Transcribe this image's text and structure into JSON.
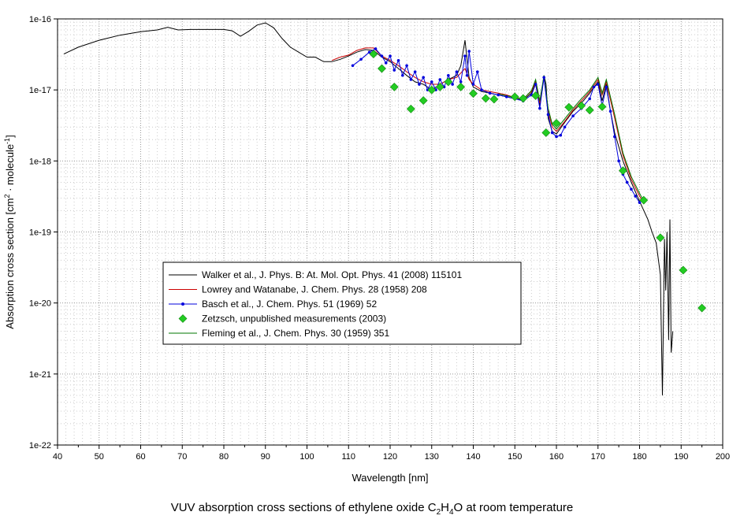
{
  "caption": {
    "prefix": "VUV absorption cross sections of ethylene oxide C",
    "sub1": "2",
    "mid1": "H",
    "sub2": "4",
    "suffix": "O at room temperature"
  },
  "chart_data": {
    "type": "line",
    "title": "",
    "xlabel": "Wavelength [nm]",
    "ylabel_parts": [
      "Absorption cross section [cm",
      "2",
      " · molecule",
      "-1",
      "]"
    ],
    "xlim": [
      40,
      200
    ],
    "ylim": [
      1e-22,
      1e-16
    ],
    "yscale": "log",
    "x_ticks": [
      40,
      50,
      60,
      70,
      80,
      90,
      100,
      110,
      120,
      130,
      140,
      150,
      160,
      170,
      180,
      190,
      200
    ],
    "y_ticks": [
      {
        "value": 1e-22,
        "label": "1e-22"
      },
      {
        "value": 1e-21,
        "label": "1e-21"
      },
      {
        "value": 1e-20,
        "label": "1e-20"
      },
      {
        "value": 1e-19,
        "label": "1e-19"
      },
      {
        "value": 1e-18,
        "label": "1e-18"
      },
      {
        "value": 1e-17,
        "label": "1e-17"
      },
      {
        "value": 1e-16,
        "label": "1e-16"
      }
    ],
    "grid": true,
    "legend_position": "center-left",
    "series": [
      {
        "name": "Walker et al., J. Phys. B: At. Mol. Opt. Phys. 41 (2008) 115101",
        "color": "#000000",
        "style": "line",
        "x": [
          41.5,
          45,
          50,
          55,
          60,
          64,
          66.5,
          69,
          72,
          76,
          80,
          82,
          84,
          86,
          88,
          90,
          92,
          94,
          96,
          98,
          100,
          102,
          104,
          106,
          108,
          110,
          112,
          114,
          116,
          118,
          120,
          122,
          124,
          126,
          128,
          130,
          132,
          134,
          136,
          137,
          138,
          139,
          140,
          142,
          144,
          146,
          148,
          150,
          152,
          154,
          155,
          156,
          157,
          157.5,
          158,
          159,
          160,
          162,
          164,
          166,
          168,
          170,
          171,
          172,
          173,
          174,
          176,
          178,
          180,
          182,
          183,
          184,
          185,
          185.5,
          186,
          186.3,
          186.6,
          187,
          187.3,
          187.6,
          188
        ],
        "y": [
          3.2e-17,
          4e-17,
          5e-17,
          5.9e-17,
          6.6e-17,
          7e-17,
          7.6e-17,
          7e-17,
          7.1e-17,
          7.1e-17,
          7.1e-17,
          6.8e-17,
          5.7e-17,
          6.7e-17,
          8.2e-17,
          8.8e-17,
          7.5e-17,
          5.3e-17,
          4e-17,
          3.4e-17,
          2.9e-17,
          2.9e-17,
          2.5e-17,
          2.5e-17,
          2.7e-17,
          3e-17,
          3.4e-17,
          3.7e-17,
          3.6e-17,
          2.9e-17,
          2.5e-17,
          2e-17,
          1.6e-17,
          1.3e-17,
          1.2e-17,
          1e-17,
          1.2e-17,
          1.4e-17,
          1.6e-17,
          2.2e-17,
          5e-17,
          1.5e-17,
          1.1e-17,
          9.5e-18,
          9e-18,
          8.5e-18,
          8e-18,
          7.5e-18,
          7.2e-18,
          9e-18,
          1.3e-17,
          6e-18,
          1.6e-17,
          1.2e-17,
          4e-18,
          2.6e-18,
          2.4e-18,
          3.5e-18,
          5e-18,
          6.5e-18,
          9e-18,
          1.3e-17,
          7e-18,
          1.2e-17,
          5e-18,
          2.5e-18,
          1e-18,
          5e-19,
          2.7e-19,
          1.5e-19,
          1e-19,
          7e-20,
          2.5e-20,
          5e-22,
          8e-20,
          1.5e-20,
          1e-19,
          3e-21,
          1.5e-19,
          2e-21,
          4e-21
        ]
      },
      {
        "name": "Lowrey and Watanabe, J. Chem. Phys. 28 (1958) 208",
        "color": "#cc0000",
        "style": "line",
        "x": [
          106,
          108,
          110,
          112,
          114,
          116,
          118,
          120,
          122,
          124,
          126,
          128,
          130,
          132,
          134,
          136,
          138,
          139,
          140,
          142,
          144,
          146,
          148,
          150,
          152,
          154,
          155,
          156,
          157,
          158,
          159,
          160,
          162,
          164,
          166,
          168,
          170,
          171,
          172,
          174,
          176,
          178,
          180,
          181
        ],
        "y": [
          2.6e-17,
          2.9e-17,
          3.1e-17,
          3.6e-17,
          3.9e-17,
          3.9e-17,
          3e-17,
          2.6e-17,
          2.2e-17,
          1.8e-17,
          1.5e-17,
          1.3e-17,
          1.2e-17,
          1.2e-17,
          1.4e-17,
          1.5e-17,
          2e-17,
          1.4e-17,
          1.2e-17,
          1e-17,
          9.5e-18,
          9e-18,
          8.5e-18,
          7.8e-18,
          7.5e-18,
          9.5e-18,
          1.3e-17,
          6.5e-18,
          1.5e-17,
          5e-18,
          3e-18,
          2.6e-18,
          3.6e-18,
          5.2e-18,
          7e-18,
          9.5e-18,
          1.4e-17,
          8.5e-18,
          1.3e-17,
          4e-18,
          1.2e-18,
          5.5e-19,
          3.2e-19,
          2.5e-19
        ]
      },
      {
        "name": "Basch et al., J. Chem. Phys. 51 (1969) 52",
        "color": "#0000dd",
        "style": "line-marker",
        "x": [
          111,
          113,
          115,
          116.5,
          118,
          119,
          120,
          121,
          122,
          123,
          124,
          125,
          126,
          127,
          128,
          129,
          130,
          131,
          132,
          133,
          134,
          135,
          136,
          137,
          138,
          138.5,
          139,
          140,
          141,
          142,
          144,
          146,
          148,
          150,
          152,
          154,
          155,
          156,
          157,
          158,
          159,
          160,
          161,
          162,
          164,
          166,
          168,
          169,
          170,
          171,
          172,
          173,
          174,
          175,
          176,
          177,
          178,
          179,
          180
        ],
        "y": [
          2.2e-17,
          2.7e-17,
          3.4e-17,
          3.8e-17,
          3e-17,
          2.4e-17,
          3e-17,
          1.9e-17,
          2.6e-17,
          1.6e-17,
          2.2e-17,
          1.4e-17,
          1.8e-17,
          1.2e-17,
          1.5e-17,
          1e-17,
          1.3e-17,
          1e-17,
          1.4e-17,
          1.1e-17,
          1.6e-17,
          1.2e-17,
          1.8e-17,
          1.3e-17,
          3e-17,
          1.6e-17,
          3.5e-17,
          1.2e-17,
          1.8e-17,
          1e-17,
          9e-18,
          8.5e-18,
          8e-18,
          7.5e-18,
          7e-18,
          8.5e-18,
          1.2e-17,
          5.5e-18,
          1.5e-17,
          4.5e-18,
          2.5e-18,
          2.2e-18,
          2.3e-18,
          3e-18,
          4.3e-18,
          5.5e-18,
          7.5e-18,
          1.1e-17,
          1.2e-17,
          6e-18,
          1.1e-17,
          5e-18,
          2.2e-18,
          1e-18,
          6.5e-19,
          5e-19,
          4e-19,
          3.2e-19,
          2.6e-19
        ]
      },
      {
        "name": "Zetzsch, unpublished measurements (2003)",
        "color": "#22cc22",
        "style": "marker",
        "x": [
          116,
          118,
          121,
          125,
          128,
          130,
          132,
          134,
          137,
          140,
          143,
          145,
          150,
          152,
          155,
          157.5,
          160,
          163,
          166,
          168,
          171,
          176,
          181,
          185,
          190.5,
          195
        ],
        "y": [
          3.2e-17,
          2e-17,
          1.1e-17,
          5.4e-18,
          7.1e-18,
          1e-17,
          1.1e-17,
          1.3e-17,
          1.1e-17,
          8.9e-18,
          7.6e-18,
          7.4e-18,
          8e-18,
          7.6e-18,
          8.3e-18,
          2.5e-18,
          3.4e-18,
          5.7e-18,
          6e-18,
          5.2e-18,
          5.8e-18,
          7.3e-19,
          2.8e-19,
          8.3e-20,
          2.9e-20,
          8.5e-21
        ]
      },
      {
        "name": "Fleming et al., J. Chem. Phys. 30 (1959) 351",
        "color": "#007700",
        "style": "line",
        "x": [
          146,
          148,
          150,
          152,
          154,
          155,
          156,
          157,
          158,
          159,
          160,
          162,
          164,
          166,
          168,
          170,
          171,
          172,
          174,
          176,
          178,
          180,
          181
        ],
        "y": [
          8.8e-18,
          8.3e-18,
          7.8e-18,
          7.4e-18,
          9.8e-18,
          1.4e-17,
          7e-18,
          1.6e-17,
          5.5e-18,
          3.3e-18,
          2.8e-18,
          3.9e-18,
          5.5e-18,
          7.5e-18,
          1e-17,
          1.5e-17,
          9e-18,
          1.4e-17,
          4.5e-18,
          1.3e-18,
          6e-19,
          3.5e-19,
          2.7e-19
        ]
      }
    ]
  }
}
